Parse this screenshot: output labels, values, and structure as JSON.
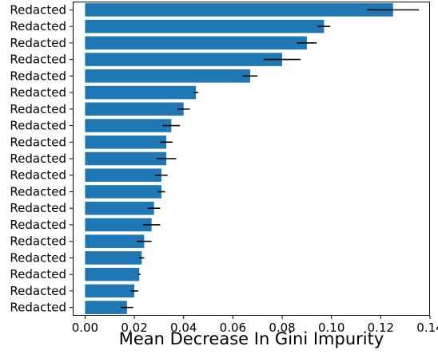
{
  "chart_data": {
    "type": "bar",
    "orientation": "horizontal",
    "title": "",
    "xlabel": "Mean Decrease In Gini Impurity",
    "ylabel": "",
    "xlim": [
      -0.005,
      0.14
    ],
    "xticks": [
      0.0,
      0.02,
      0.04,
      0.06,
      0.08,
      0.1,
      0.12,
      0.14
    ],
    "xtick_labels": [
      "0.00",
      "0.02",
      "0.04",
      "0.06",
      "0.08",
      "0.10",
      "0.12",
      "0.14"
    ],
    "grid": false,
    "legend": "none",
    "bar_color": "#1f77b4",
    "error_bar_color": "#000000",
    "categories": [
      "Redacted",
      "Redacted",
      "Redacted",
      "Redacted",
      "Redacted",
      "Redacted",
      "Redacted",
      "Redacted",
      "Redacted",
      "Redacted",
      "Redacted",
      "Redacted",
      "Redacted",
      "Redacted",
      "Redacted",
      "Redacted",
      "Redacted",
      "Redacted",
      "Redacted"
    ],
    "values": [
      0.125,
      0.097,
      0.09,
      0.08,
      0.067,
      0.045,
      0.04,
      0.035,
      0.033,
      0.033,
      0.031,
      0.031,
      0.028,
      0.027,
      0.024,
      0.023,
      0.022,
      0.02,
      0.017
    ],
    "errors": [
      0.0105,
      0.0025,
      0.004,
      0.0075,
      0.003,
      0.001,
      0.0025,
      0.0035,
      0.0025,
      0.004,
      0.0025,
      0.0015,
      0.0025,
      0.0035,
      0.003,
      0.001,
      0.0005,
      0.0015,
      0.0025
    ]
  }
}
